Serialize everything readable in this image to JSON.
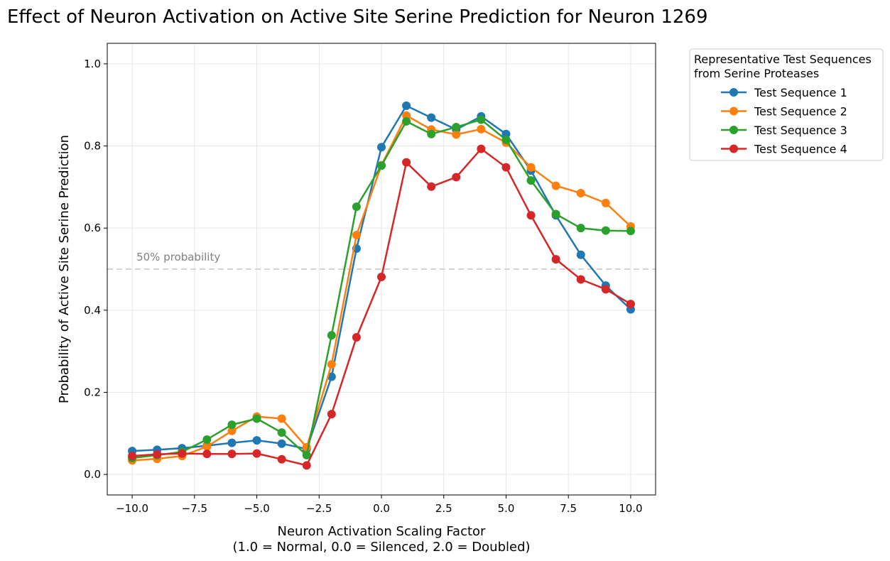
{
  "chart_data": {
    "type": "line",
    "title": "Effect of Neuron Activation on Active Site Serine Prediction for Neuron 1269",
    "xlabel": "Neuron Activation Scaling Factor",
    "xlabel_line2": "(1.0 = Normal, 0.0 = Silenced, 2.0 = Doubled)",
    "ylabel": "Probability of Active Site Serine Prediction",
    "xlim": [
      -11,
      11
    ],
    "ylim": [
      -0.05,
      1.05
    ],
    "xticks": [
      -10.0,
      -7.5,
      -5.0,
      -2.5,
      0.0,
      2.5,
      5.0,
      7.5,
      10.0
    ],
    "xtick_labels": [
      "−10.0",
      "−7.5",
      "−5.0",
      "−2.5",
      "0.0",
      "2.5",
      "5.0",
      "7.5",
      "10.0"
    ],
    "yticks": [
      0.0,
      0.2,
      0.4,
      0.6,
      0.8,
      1.0
    ],
    "ytick_labels": [
      "0.0",
      "0.2",
      "0.4",
      "0.6",
      "0.8",
      "1.0"
    ],
    "grid": true,
    "legend_title_line1": "Representative Test Sequences",
    "legend_title_line2": "from Serine Proteases",
    "legend_position": "outside-upper-right",
    "reference_line": {
      "y": 0.5,
      "label": "50% probability",
      "color": "#d3d3d3"
    },
    "x": [
      -10,
      -9,
      -8,
      -7,
      -6,
      -5,
      -4,
      -3,
      -2,
      -1,
      0,
      1,
      2,
      3,
      4,
      5,
      6,
      7,
      8,
      9,
      10
    ],
    "series": [
      {
        "name": "Test Sequence 1",
        "color": "#1f77b4",
        "values": [
          0.057,
          0.06,
          0.064,
          0.07,
          0.077,
          0.083,
          0.075,
          0.062,
          0.238,
          0.55,
          0.797,
          0.898,
          0.869,
          0.84,
          0.872,
          0.829,
          0.74,
          0.631,
          0.535,
          0.46,
          0.402
        ]
      },
      {
        "name": "Test Sequence 2",
        "color": "#ff7f0e",
        "values": [
          0.034,
          0.038,
          0.045,
          0.068,
          0.106,
          0.141,
          0.136,
          0.066,
          0.268,
          0.583,
          0.753,
          0.874,
          0.84,
          0.828,
          0.841,
          0.808,
          0.748,
          0.703,
          0.685,
          0.661,
          0.604
        ]
      },
      {
        "name": "Test Sequence 3",
        "color": "#2ca02c",
        "values": [
          0.04,
          0.047,
          0.055,
          0.085,
          0.121,
          0.136,
          0.102,
          0.047,
          0.339,
          0.652,
          0.752,
          0.86,
          0.829,
          0.846,
          0.864,
          0.815,
          0.716,
          0.634,
          0.6,
          0.594,
          0.593
        ]
      },
      {
        "name": "Test Sequence 4",
        "color": "#d62728",
        "values": [
          0.045,
          0.049,
          0.051,
          0.05,
          0.05,
          0.051,
          0.037,
          0.022,
          0.147,
          0.334,
          0.481,
          0.76,
          0.701,
          0.724,
          0.793,
          0.748,
          0.631,
          0.524,
          0.475,
          0.451,
          0.415
        ]
      }
    ]
  }
}
